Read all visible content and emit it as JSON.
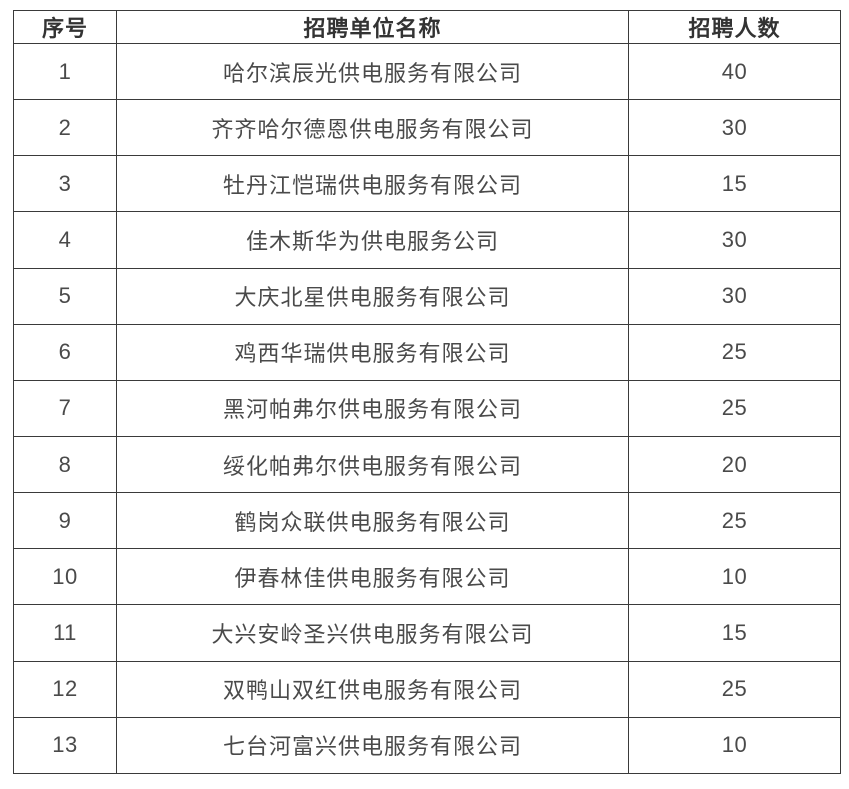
{
  "table": {
    "columns": [
      {
        "label": "序号"
      },
      {
        "label": "招聘单位名称"
      },
      {
        "label": "招聘人数"
      }
    ],
    "rows": [
      {
        "no": "1",
        "company": "哈尔滨辰光供电服务有限公司",
        "count": "40"
      },
      {
        "no": "2",
        "company": "齐齐哈尔德恩供电服务有限公司",
        "count": "30"
      },
      {
        "no": "3",
        "company": "牡丹江恺瑞供电服务有限公司",
        "count": "15"
      },
      {
        "no": "4",
        "company": "佳木斯华为供电服务公司",
        "count": "30"
      },
      {
        "no": "5",
        "company": "大庆北星供电服务有限公司",
        "count": "30"
      },
      {
        "no": "6",
        "company": "鸡西华瑞供电服务有限公司",
        "count": "25"
      },
      {
        "no": "7",
        "company": "黑河帕弗尔供电服务有限公司",
        "count": "25"
      },
      {
        "no": "8",
        "company": "绥化帕弗尔供电服务有限公司",
        "count": "20"
      },
      {
        "no": "9",
        "company": "鹤岗众联供电服务有限公司",
        "count": "25"
      },
      {
        "no": "10",
        "company": "伊春林佳供电服务有限公司",
        "count": "10"
      },
      {
        "no": "11",
        "company": "大兴安岭圣兴供电服务有限公司",
        "count": "15"
      },
      {
        "no": "12",
        "company": "双鸭山双红供电服务有限公司",
        "count": "25"
      },
      {
        "no": "13",
        "company": "七台河富兴供电服务有限公司",
        "count": "10"
      }
    ]
  },
  "colors": {
    "border": "#3a3a3a",
    "header_text": "#333333",
    "cell_text": "#4a4a4a",
    "background": "#ffffff"
  }
}
